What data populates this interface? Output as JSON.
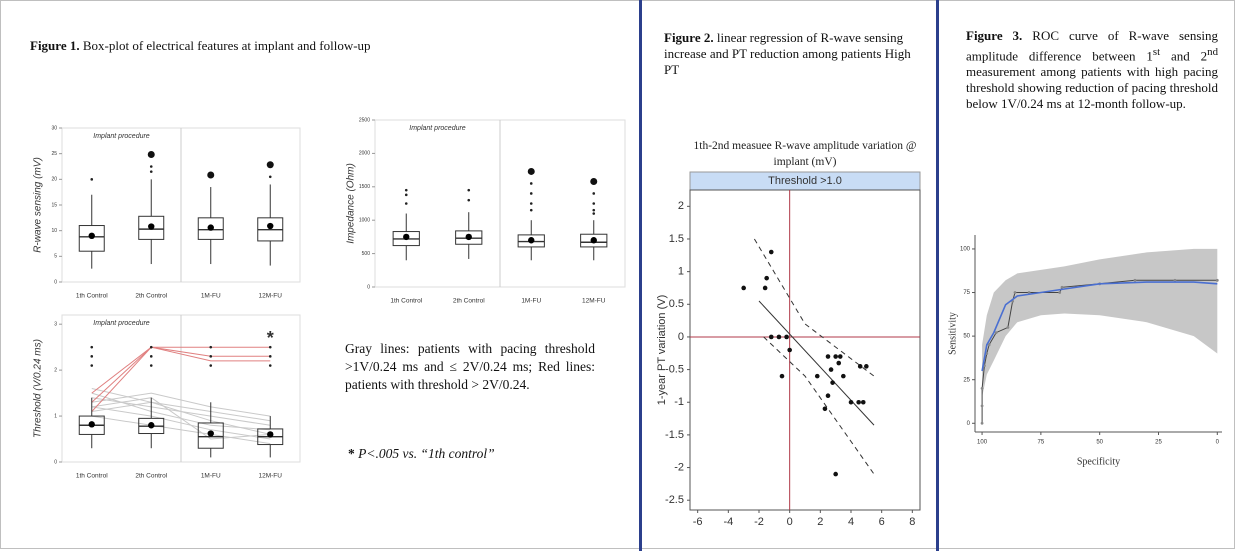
{
  "figures": [
    {
      "label": "Figure 1.",
      "caption": [
        "Box-plot of electrical features at implant and follow-up"
      ]
    },
    {
      "label": "Figure 2.",
      "caption": [
        "linear regression of R-wave sensing increase and PT reduction among patients High PT"
      ]
    },
    {
      "label": "Figure 3.",
      "caption": [
        "ROC curve of R-wave sensing amplitude difference between 1",
        "st",
        " and 2",
        "nd",
        " measurement among patients with high pacing threshold showing reduction of pacing threshold below 1V/0.24 ms at 12-month follow-up."
      ]
    }
  ],
  "note": "Gray lines: patients with pacing threshold >1V/0.24 ms and ≤ 2V/0.24 ms; Red lines: patients with threshold > 2V/0.24.",
  "footnote_mark": "*",
  "footnote": "P<.005 vs. “1th control”",
  "chart_data": [
    {
      "type": "box",
      "panel_label": "Implant procedure",
      "ylabel": "R-wave sensing (mV)",
      "categories": [
        "1th Control",
        "2th Control",
        "1M-FU",
        "12M-FU"
      ],
      "ylim": [
        0,
        30
      ],
      "yticks": [
        0,
        5,
        10,
        15,
        20,
        25,
        30
      ],
      "boxes": [
        {
          "low": 2.6,
          "q1": 6,
          "median": 8.8,
          "q3": 11,
          "high": 17,
          "mean": 9,
          "outliers": [
            20
          ]
        },
        {
          "low": 3.5,
          "q1": 8.3,
          "median": 10.3,
          "q3": 12.8,
          "high": 20,
          "mean": 10.8,
          "outliers": [
            21.5,
            22.5
          ]
        },
        {
          "low": 3.5,
          "q1": 8.3,
          "median": 10.2,
          "q3": 12.5,
          "high": 18.5,
          "mean": 10.6,
          "outliers": []
        },
        {
          "low": 3.2,
          "q1": 8,
          "median": 10.2,
          "q3": 12.5,
          "high": 19,
          "mean": 10.9,
          "outliers": [
            20.5
          ]
        }
      ],
      "sig": [
        false,
        true,
        true,
        true
      ],
      "color": "#333333"
    },
    {
      "type": "box",
      "panel_label": "Implant procedure",
      "ylabel": "Impedance (Ohm)",
      "categories": [
        "1th Control",
        "2th Control",
        "1M-FU",
        "12M-FU"
      ],
      "ylim": [
        0,
        2500
      ],
      "yticks": [
        0,
        500,
        1000,
        1500,
        2000,
        2500
      ],
      "boxes": [
        {
          "low": 400,
          "q1": 620,
          "median": 720,
          "q3": 830,
          "high": 1100,
          "mean": 750,
          "outliers": [
            1250,
            1380,
            1450
          ]
        },
        {
          "low": 420,
          "q1": 640,
          "median": 730,
          "q3": 840,
          "high": 1120,
          "mean": 750,
          "outliers": [
            1300,
            1450
          ]
        },
        {
          "low": 400,
          "q1": 600,
          "median": 680,
          "q3": 780,
          "high": 1000,
          "mean": 700,
          "outliers": [
            1150,
            1250,
            1400,
            1550
          ]
        },
        {
          "low": 400,
          "q1": 600,
          "median": 670,
          "q3": 790,
          "high": 1000,
          "mean": 700,
          "outliers": [
            1100,
            1150,
            1250,
            1400
          ]
        }
      ],
      "sig": [
        false,
        false,
        true,
        true
      ],
      "color": "#333333"
    },
    {
      "type": "box",
      "panel_label": "Implant procedure",
      "ylabel": "Threshold (V/0.24 ms)",
      "categories": [
        "1th Control",
        "2th Control",
        "1M-FU",
        "12M-FU"
      ],
      "ylim": [
        0,
        3.2
      ],
      "yticks": [
        0,
        1,
        2,
        3
      ],
      "boxes": [
        {
          "low": 0.3,
          "q1": 0.6,
          "median": 0.8,
          "q3": 1.0,
          "high": 1.4,
          "mean": 0.82,
          "outliers": [
            2.1,
            2.3,
            2.5
          ]
        },
        {
          "low": 0.3,
          "q1": 0.62,
          "median": 0.78,
          "q3": 0.95,
          "high": 1.4,
          "mean": 0.8,
          "outliers": [
            2.1,
            2.3,
            2.5
          ]
        },
        {
          "low": 0.1,
          "q1": 0.3,
          "median": 0.55,
          "q3": 0.85,
          "high": 1.3,
          "mean": 0.62,
          "outliers": [
            2.1,
            2.3,
            2.5
          ]
        },
        {
          "low": 0.1,
          "q1": 0.38,
          "median": 0.55,
          "q3": 0.72,
          "high": 1.0,
          "mean": 0.6,
          "outliers": [
            2.1,
            2.3,
            2.5
          ]
        }
      ],
      "lines": [
        {
          "color": "#c9c9c9",
          "values": [
            1.1,
            1.3,
            0.9,
            0.6
          ]
        },
        {
          "color": "#c9c9c9",
          "values": [
            1.2,
            1.0,
            0.7,
            0.5
          ]
        },
        {
          "color": "#c9c9c9",
          "values": [
            1.4,
            1.2,
            1.0,
            0.8
          ]
        },
        {
          "color": "#c9c9c9",
          "values": [
            1.0,
            0.8,
            0.6,
            0.4
          ]
        },
        {
          "color": "#c9c9c9",
          "values": [
            1.3,
            1.5,
            1.2,
            1.0
          ]
        },
        {
          "color": "#c9c9c9",
          "values": [
            1.5,
            1.1,
            0.8,
            0.7
          ]
        },
        {
          "color": "#c9c9c9",
          "values": [
            1.2,
            1.4,
            0.5,
            0.6
          ]
        },
        {
          "color": "#c9c9c9",
          "values": [
            1.6,
            1.3,
            1.1,
            0.9
          ]
        },
        {
          "color": "#e08080",
          "values": [
            1.3,
            2.5,
            2.5,
            2.5
          ]
        },
        {
          "color": "#e08080",
          "values": [
            1.1,
            2.5,
            2.2,
            2.2
          ]
        },
        {
          "color": "#e08080",
          "values": [
            1.5,
            2.5,
            2.3,
            2.3
          ]
        }
      ],
      "sig": [
        false,
        false,
        false,
        true
      ],
      "sig_label": "*",
      "color": "#333333"
    },
    {
      "type": "scatter",
      "title": "1th-2nd measuee R-wave amplitude variation @ implant (mV)",
      "strip": "Threshold >1.0",
      "ylabel": "1-year PT variation (V)",
      "xlim": [
        -6.5,
        8.5
      ],
      "xticks": [
        -6,
        -4,
        -2,
        0,
        2,
        4,
        6,
        8
      ],
      "ylim": [
        -2.65,
        2.25
      ],
      "yticks": [
        -2.5,
        -2,
        -1.5,
        -1,
        -0.5,
        0,
        0.5,
        1,
        1.5,
        2
      ],
      "x": [
        -3,
        -1.2,
        -1.5,
        -1.6,
        -1.2,
        -0.7,
        -0.2,
        0,
        -0.5,
        1.8,
        2.3,
        2.5,
        2.7,
        3,
        3.2,
        2.8,
        2.5,
        3.5,
        4,
        4.6,
        5,
        4.5,
        4.8,
        3,
        3.3
      ],
      "y": [
        0.75,
        1.3,
        0.9,
        0.75,
        0,
        0,
        0,
        -0.2,
        -0.6,
        -0.6,
        -1.1,
        -0.3,
        -0.5,
        -0.3,
        -0.4,
        -0.7,
        -0.9,
        -0.6,
        -1.0,
        -0.45,
        -0.45,
        -1.0,
        -1.0,
        -2.1,
        -0.3
      ],
      "fit": {
        "x": [
          -2,
          5.5
        ],
        "y": [
          0.55,
          -1.35
        ]
      },
      "ci_upper": {
        "x": [
          -2.3,
          1,
          5.5
        ],
        "y": [
          1.5,
          0.2,
          -0.6
        ]
      },
      "ci_lower": {
        "x": [
          -1.7,
          1,
          5.5
        ],
        "y": [
          0.0,
          -0.6,
          -2.1
        ]
      },
      "point_color": "#111111",
      "fit_color": "#333333",
      "ref_color": "#b03a48",
      "strip_color": "#c8dcf5"
    },
    {
      "type": "roc",
      "xlabel": "Specificity",
      "ylabel": "Sensitivity",
      "xlim": [
        103,
        -2
      ],
      "xticks": [
        100,
        75,
        50,
        25,
        0
      ],
      "ylim": [
        -5,
        108
      ],
      "yticks": [
        0,
        25,
        50,
        75,
        100
      ],
      "roc": {
        "x": [
          100,
          100,
          100,
          99,
          98,
          97,
          94,
          89,
          87,
          86,
          80,
          67,
          66,
          50,
          35,
          18,
          0
        ],
        "y": [
          0,
          10,
          20,
          33,
          40,
          45,
          52,
          55,
          70,
          75,
          75,
          75,
          78,
          80,
          82,
          82,
          82
        ]
      },
      "smooth": {
        "x": [
          100,
          98,
          95,
          90,
          85,
          75,
          65,
          50,
          30,
          10,
          0
        ],
        "y": [
          30,
          45,
          52,
          68,
          73,
          75,
          77,
          80,
          81,
          81,
          80
        ]
      },
      "band": {
        "x": [
          100,
          98,
          95,
          90,
          85,
          75,
          65,
          50,
          30,
          10,
          0
        ],
        "lower": [
          15,
          28,
          36,
          50,
          58,
          62,
          63,
          62,
          58,
          50,
          40
        ],
        "upper": [
          45,
          62,
          75,
          82,
          86,
          88,
          90,
          94,
          98,
          100,
          100
        ]
      },
      "line_color": "#4a6fd1",
      "band_color": "#bdbdbd",
      "point_color": "#888888"
    }
  ]
}
